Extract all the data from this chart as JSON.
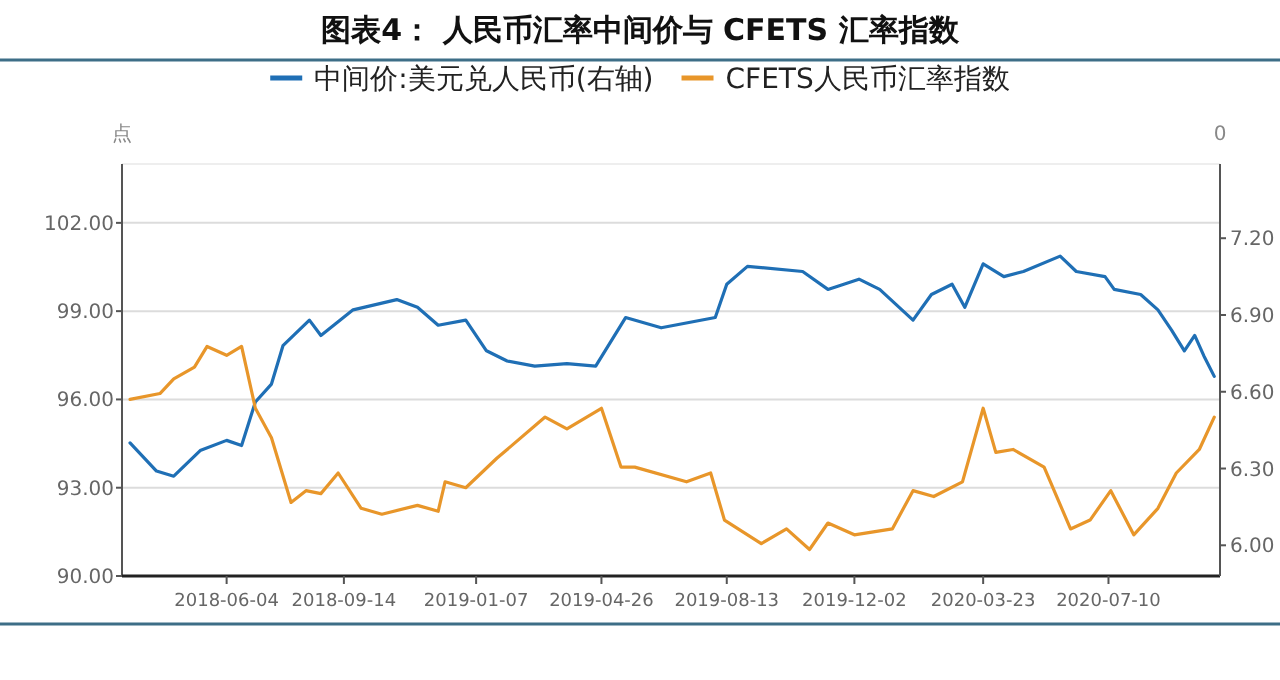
{
  "chart_data": {
    "type": "line",
    "title": "图表4： 人民币汇率中间价与 CFETS 汇率指数",
    "ylabel": "点",
    "y2label": "0",
    "legend": "top",
    "grid": "y",
    "marker": "none",
    "line_style": "solid",
    "xlim": [
      "2018-03-05",
      "2020-10-15"
    ],
    "xticks": [
      "2018-06-04",
      "2018-09-14",
      "2019-01-07",
      "2019-04-26",
      "2019-08-13",
      "2019-12-02",
      "2020-03-23",
      "2020-07-10"
    ],
    "ylim": [
      90,
      104
    ],
    "yticks": [
      {
        "value": 90,
        "label": "90.00"
      },
      {
        "value": 93,
        "label": "93.00"
      },
      {
        "value": 96,
        "label": "96.00"
      },
      {
        "value": 99,
        "label": "99.00"
      },
      {
        "value": 102,
        "label": "102.00"
      }
    ],
    "y2lim": [
      5.88,
      7.49
    ],
    "y2ticks": [
      {
        "value": 6.0,
        "label": "6.00"
      },
      {
        "value": 6.3,
        "label": "6.30"
      },
      {
        "value": 6.6,
        "label": "6.60"
      },
      {
        "value": 6.9,
        "label": "6.90"
      },
      {
        "value": 7.2,
        "label": "7.20"
      }
    ],
    "series": [
      {
        "name": "中间价:美元兑人民币(右轴)",
        "color": "#1f6fb5",
        "axis": "y2",
        "x": [
          "2018-03-12",
          "2018-04-04",
          "2018-04-19",
          "2018-05-12",
          "2018-06-04",
          "2018-06-17",
          "2018-06-29",
          "2018-07-13",
          "2018-07-23",
          "2018-08-15",
          "2018-08-25",
          "2018-09-22",
          "2018-10-30",
          "2018-11-17",
          "2018-12-05",
          "2018-12-29",
          "2019-01-16",
          "2019-02-03",
          "2019-02-27",
          "2019-03-27",
          "2019-04-21",
          "2019-05-17",
          "2019-06-17",
          "2019-08-03",
          "2019-08-13",
          "2019-08-31",
          "2019-10-18",
          "2019-11-09",
          "2019-12-06",
          "2019-12-24",
          "2020-01-22",
          "2020-02-07",
          "2020-02-25",
          "2020-03-07",
          "2020-03-23",
          "2020-04-10",
          "2020-04-27",
          "2020-05-29",
          "2020-06-12",
          "2020-07-07",
          "2020-07-15",
          "2020-08-07",
          "2020-08-22",
          "2020-09-03",
          "2020-09-14",
          "2020-09-23",
          "2020-10-01",
          "2020-10-10"
        ],
        "values": [
          6.4,
          6.29,
          6.27,
          6.37,
          6.41,
          6.39,
          6.56,
          6.63,
          6.78,
          6.88,
          6.82,
          6.92,
          6.96,
          6.93,
          6.86,
          6.88,
          6.76,
          6.72,
          6.7,
          6.71,
          6.7,
          6.89,
          6.85,
          6.89,
          7.02,
          7.09,
          7.07,
          7.0,
          7.04,
          7.0,
          6.88,
          6.98,
          7.02,
          6.93,
          7.1,
          7.05,
          7.07,
          7.13,
          7.07,
          7.05,
          7.0,
          6.98,
          6.92,
          6.84,
          6.76,
          6.82,
          6.74,
          6.66
        ]
      },
      {
        "name": "CFETS人民币汇率指数",
        "color": "#e8962a",
        "x": [
          "2018-03-12",
          "2018-04-07",
          "2018-04-19",
          "2018-05-07",
          "2018-05-18",
          "2018-06-04",
          "2018-06-17",
          "2018-06-29",
          "2018-07-13",
          "2018-07-30",
          "2018-08-12",
          "2018-08-25",
          "2018-09-09",
          "2018-09-29",
          "2018-10-17",
          "2018-11-17",
          "2018-12-05",
          "2018-12-11",
          "2018-12-29",
          "2019-01-25",
          "2019-03-08",
          "2019-03-27",
          "2019-04-26",
          "2019-05-13",
          "2019-05-25",
          "2019-07-09",
          "2019-07-30",
          "2019-08-11",
          "2019-09-12",
          "2019-10-04",
          "2019-10-24",
          "2019-11-09",
          "2019-12-02",
          "2020-01-04",
          "2020-01-22",
          "2020-02-09",
          "2020-03-05",
          "2020-03-23",
          "2020-04-03",
          "2020-04-18",
          "2020-05-15",
          "2020-06-07",
          "2020-06-24",
          "2020-07-12",
          "2020-08-01",
          "2020-08-22",
          "2020-09-07",
          "2020-09-27",
          "2020-10-10"
        ],
        "values": [
          96.0,
          96.2,
          96.7,
          97.1,
          97.8,
          97.5,
          97.8,
          95.7,
          94.7,
          92.5,
          92.9,
          92.8,
          93.5,
          92.3,
          92.1,
          92.4,
          92.2,
          93.2,
          93.0,
          94.0,
          95.4,
          95.0,
          95.7,
          93.7,
          93.7,
          93.2,
          93.5,
          91.9,
          91.1,
          91.6,
          90.9,
          91.8,
          91.4,
          91.6,
          92.9,
          92.7,
          93.2,
          95.7,
          94.2,
          94.3,
          93.7,
          91.6,
          91.9,
          92.9,
          91.4,
          92.3,
          93.5,
          94.3,
          95.4
        ]
      }
    ]
  }
}
